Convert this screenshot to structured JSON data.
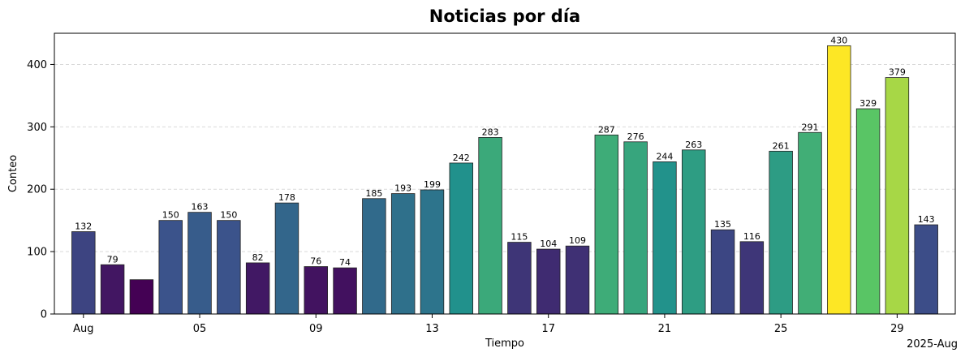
{
  "chart_data": {
    "type": "bar",
    "title": "Noticias por día",
    "xlabel": "Tiempo",
    "ylabel": "Conteo",
    "x_offset_label": "2025-Aug",
    "ylim": [
      0,
      450
    ],
    "yticks": [
      0,
      100,
      200,
      300,
      400
    ],
    "grid": "y",
    "xticks": [
      {
        "day": 1,
        "label": "Aug"
      },
      {
        "day": 5,
        "label": "05"
      },
      {
        "day": 9,
        "label": "09"
      },
      {
        "day": 13,
        "label": "13"
      },
      {
        "day": 17,
        "label": "17"
      },
      {
        "day": 21,
        "label": "21"
      },
      {
        "day": 25,
        "label": "25"
      },
      {
        "day": 29,
        "label": "29"
      }
    ],
    "x_days": [
      1,
      2,
      3,
      4,
      5,
      6,
      7,
      8,
      9,
      10,
      11,
      12,
      13,
      14,
      15,
      16,
      17,
      18,
      19,
      20,
      21,
      22,
      23,
      24,
      25,
      26,
      27,
      28,
      29,
      30
    ],
    "values": [
      132,
      79,
      55,
      150,
      163,
      150,
      82,
      178,
      76,
      74,
      185,
      193,
      199,
      242,
      283,
      115,
      104,
      109,
      287,
      276,
      244,
      263,
      135,
      116,
      261,
      291,
      430,
      329,
      379,
      143
    ],
    "data_labels": [
      "132",
      "79",
      "",
      "150",
      "163",
      "150",
      "82",
      "178",
      "76",
      "74",
      "185",
      "193",
      "199",
      "242",
      "283",
      "115",
      "104",
      "109",
      "287",
      "276",
      "244",
      "263",
      "135",
      "116",
      "261",
      "291",
      "430",
      "329",
      "379",
      "143"
    ],
    "colormap": "viridis"
  }
}
